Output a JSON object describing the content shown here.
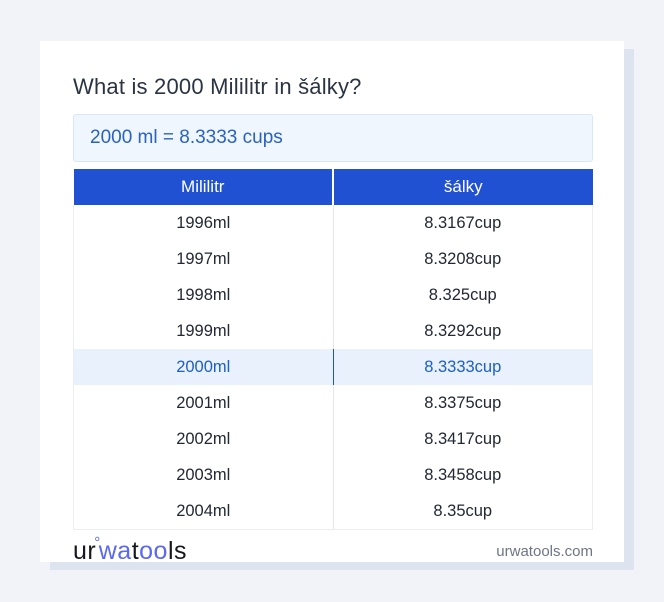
{
  "page": {
    "title": "What is 2000 Mililitr in šálky?",
    "result": "2000 ml = 8.3333 cups",
    "footer_domain": "urwatools.com"
  },
  "table": {
    "headers": [
      "Mililitr",
      "šálky"
    ],
    "rows": [
      {
        "ml": "1996ml",
        "cup": "8.3167cup",
        "highlighted": false
      },
      {
        "ml": "1997ml",
        "cup": "8.3208cup",
        "highlighted": false
      },
      {
        "ml": "1998ml",
        "cup": "8.325cup",
        "highlighted": false
      },
      {
        "ml": "1999ml",
        "cup": "8.3292cup",
        "highlighted": false
      },
      {
        "ml": "2000ml",
        "cup": "8.3333cup",
        "highlighted": true
      },
      {
        "ml": "2001ml",
        "cup": "8.3375cup",
        "highlighted": false
      },
      {
        "ml": "2002ml",
        "cup": "8.3417cup",
        "highlighted": false
      },
      {
        "ml": "2003ml",
        "cup": "8.3458cup",
        "highlighted": false
      },
      {
        "ml": "2004ml",
        "cup": "8.35cup",
        "highlighted": false
      }
    ]
  },
  "logo": {
    "segments": [
      {
        "text": "ur",
        "style": "dark"
      },
      {
        "text": "°",
        "style": "degree"
      },
      {
        "text": "wa",
        "style": "blue"
      },
      {
        "text": "t",
        "style": "dark"
      },
      {
        "text": "oo",
        "style": "blue"
      },
      {
        "text": "ls",
        "style": "dark"
      }
    ]
  },
  "colors": {
    "page_bg": "#f1f3f9",
    "card_bg": "#ffffff",
    "card_shadow": "#dee3f0",
    "header_bg": "#2151d3",
    "header_text": "#ffffff",
    "result_bg": "#eff6fe",
    "result_border": "#dbe7f7",
    "result_text": "#2a62bf",
    "highlight_bg": "#e8f1fc",
    "highlight_text": "#1d5fc5",
    "row_text": "#232832",
    "logo_blue": "#5b67f5",
    "logo_dark": "#17181d",
    "domain_text": "#6e7585"
  }
}
